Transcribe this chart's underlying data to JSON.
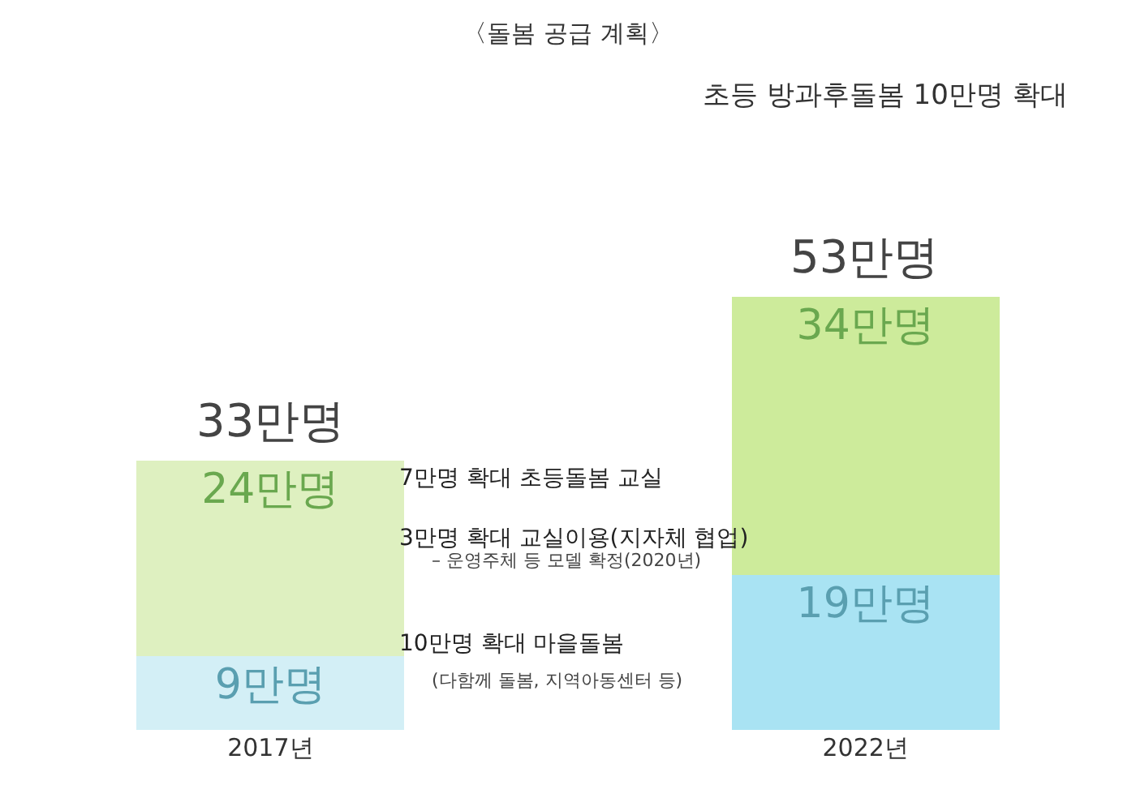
{
  "chart_data": {
    "type": "bar",
    "title": "〈돌봄 공급 계획〉",
    "categories": [
      "2017년",
      "2022년"
    ],
    "stacked": true,
    "series": [
      {
        "colors": [
          "#d3eff6",
          "#a9e3f3"
        ],
        "values": [
          9,
          19
        ],
        "value_labels": [
          "9만명",
          "19만명"
        ]
      },
      {
        "colors": [
          "#def0c0",
          "#cdeb9b"
        ],
        "values": [
          24,
          34
        ],
        "value_labels": [
          "24만명",
          "34만명"
        ]
      }
    ],
    "totals": [
      "33만명",
      "53만명"
    ],
    "legend": false,
    "annotations": [
      "초등 방과후돌봄 10만명 확대",
      "7만명 확대 초등돌봄 교실",
      "3만명 확대 교실이용(지자체 협업)",
      "– 운영주체 등 모델 확정(2020년)",
      "10만명 확대 마을돌봄",
      "(다함께 돌봄, 지역아동센터 등)"
    ]
  }
}
